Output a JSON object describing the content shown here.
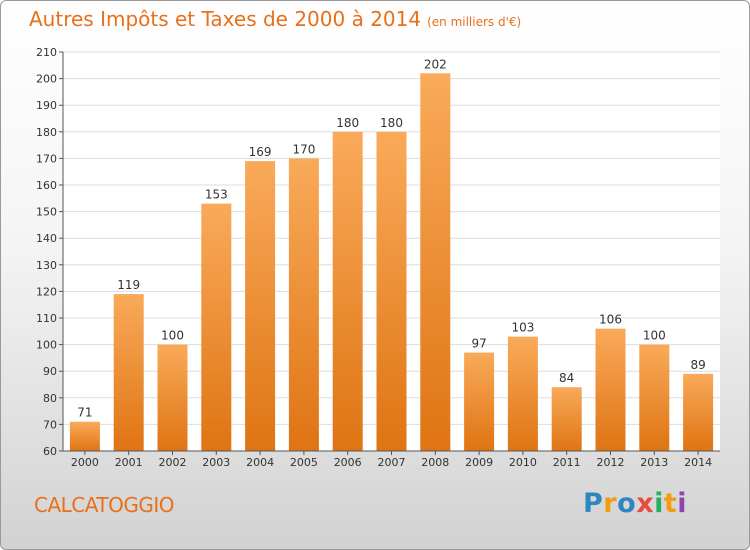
{
  "header": {
    "title": "Autres Impôts et Taxes de 2000 à 2014",
    "subtitle": "(en milliers d'€)"
  },
  "footer": {
    "commune": "CALCATOGGIO",
    "logo_letters": [
      {
        "ch": "P",
        "color": "#2e86c1"
      },
      {
        "ch": "r",
        "color": "#f39c12"
      },
      {
        "ch": "o",
        "color": "#2e86c1"
      },
      {
        "ch": "x",
        "color": "#e74c3c"
      },
      {
        "ch": "i",
        "color": "#27ae60"
      },
      {
        "ch": "t",
        "color": "#f39c12"
      },
      {
        "ch": "i",
        "color": "#8e44ad"
      }
    ]
  },
  "colors": {
    "bar_light": "#f9aa5a",
    "bar_dark": "#df7413",
    "accent": "#e8701a"
  },
  "chart_data": {
    "type": "bar",
    "title": "Autres Impôts et Taxes de 2000 à 2014",
    "subtitle": "(en milliers d'€)",
    "categories": [
      "2000",
      "2001",
      "2002",
      "2003",
      "2004",
      "2005",
      "2006",
      "2007",
      "2008",
      "2009",
      "2010",
      "2011",
      "2012",
      "2013",
      "2014"
    ],
    "values": [
      71,
      119,
      100,
      153,
      169,
      170,
      180,
      180,
      202,
      97,
      103,
      84,
      106,
      100,
      89
    ],
    "ylim": [
      60,
      210
    ],
    "yticks": [
      60,
      70,
      80,
      90,
      100,
      110,
      120,
      130,
      140,
      150,
      160,
      170,
      180,
      190,
      200,
      210
    ],
    "grid": true,
    "data_labels": true
  }
}
